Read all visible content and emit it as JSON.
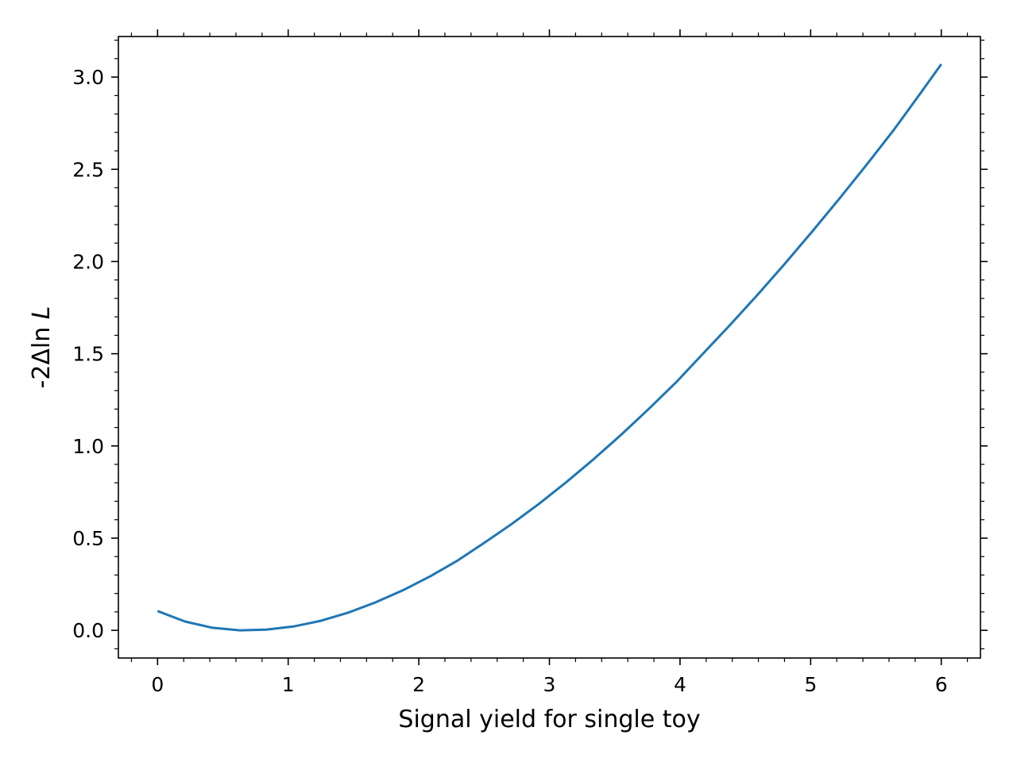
{
  "chart_data": {
    "type": "line",
    "title": "",
    "xlabel": "Signal yield for single toy",
    "ylabel_prefix": "-2Δln ",
    "ylabel_var": "L",
    "xlim": [
      -0.3,
      6.3
    ],
    "ylim": [
      -0.15,
      3.22
    ],
    "x_ticks": [
      0,
      1,
      2,
      3,
      4,
      5,
      6
    ],
    "x_tick_labels": [
      "0",
      "1",
      "2",
      "3",
      "4",
      "5",
      "6"
    ],
    "y_ticks": [
      0.0,
      0.5,
      1.0,
      1.5,
      2.0,
      2.5,
      3.0
    ],
    "y_tick_labels": [
      "0.0",
      "0.5",
      "1.0",
      "1.5",
      "2.0",
      "2.5",
      "3.0"
    ],
    "x_minor_step": 0.2,
    "y_minor_step": 0.1,
    "grid": false,
    "series": [
      {
        "color": "#1f77b4",
        "x": [
          0.0,
          0.21,
          0.42,
          0.63,
          0.83,
          1.04,
          1.25,
          1.46,
          1.67,
          1.88,
          2.09,
          2.3,
          2.5,
          2.71,
          2.92,
          3.13,
          3.34,
          3.55,
          3.76,
          3.97,
          4.17,
          4.38,
          4.59,
          4.8,
          5.01,
          5.22,
          5.43,
          5.64,
          5.84,
          6.0
        ],
        "y": [
          0.105,
          0.048,
          0.014,
          0.0,
          0.004,
          0.021,
          0.052,
          0.096,
          0.152,
          0.218,
          0.294,
          0.38,
          0.474,
          0.576,
          0.686,
          0.804,
          0.929,
          1.061,
          1.2,
          1.345,
          1.496,
          1.654,
          1.817,
          1.986,
          2.161,
          2.341,
          2.526,
          2.717,
          2.912,
          3.07
        ]
      }
    ]
  }
}
